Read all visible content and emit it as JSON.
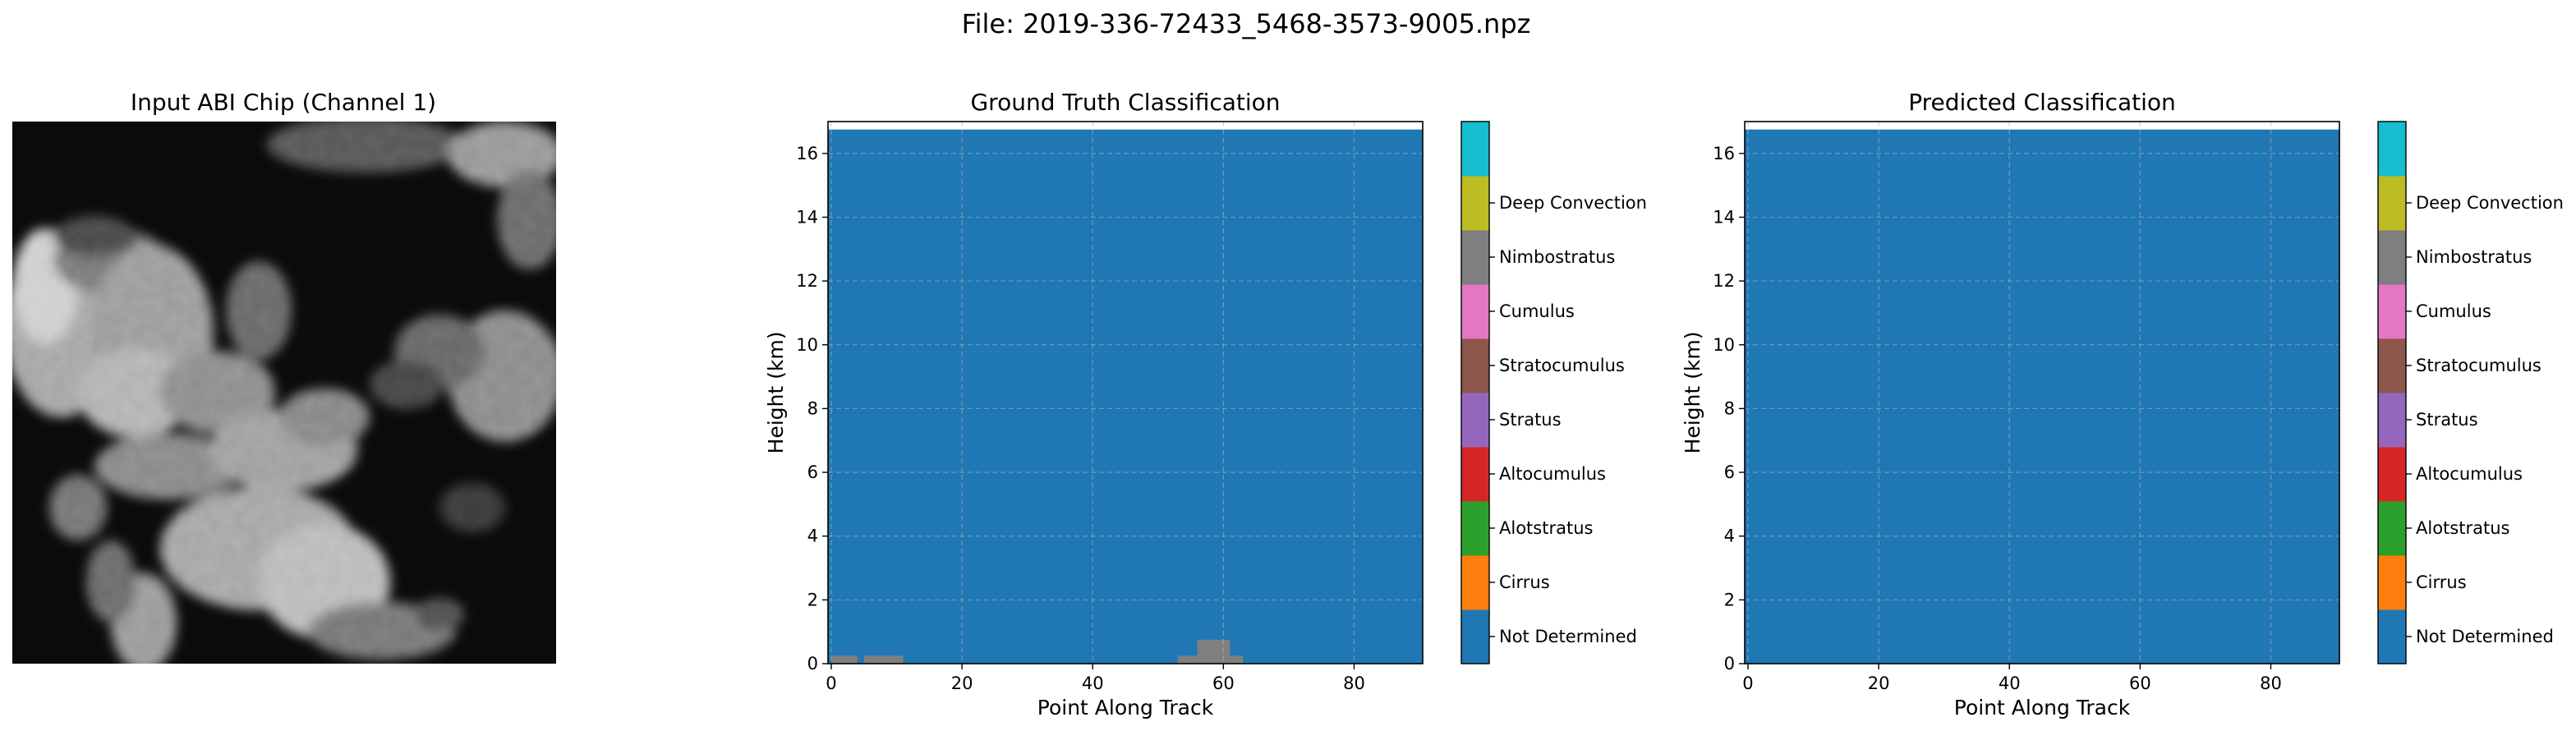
{
  "figure": {
    "suptitle": "File: 2019-336-72433_5468-3573-9005.npz",
    "image_title": "Input ABI Chip (Channel 1)"
  },
  "classes": [
    {
      "name": "Not Determined",
      "color": "#1f77b4"
    },
    {
      "name": "Cirrus",
      "color": "#ff7f0e"
    },
    {
      "name": "Alotstratus",
      "color": "#2ca02c"
    },
    {
      "name": "Altocumulus",
      "color": "#d62728"
    },
    {
      "name": "Stratus",
      "color": "#9467bd"
    },
    {
      "name": "Stratocumulus",
      "color": "#8c564b"
    },
    {
      "name": "Cumulus",
      "color": "#e377c2"
    },
    {
      "name": "Nimbostratus",
      "color": "#7f7f7f"
    },
    {
      "name": "Deep Convection",
      "color": "#bcbd22"
    },
    {
      "name": "",
      "color": "#17becf"
    }
  ],
  "chart_data": [
    {
      "type": "heatmap",
      "title": "Ground Truth Classification",
      "xlabel": "Point Along Track",
      "ylabel": "Height (km)",
      "xlim": [
        -0.5,
        90.5
      ],
      "ylim": [
        0,
        17
      ],
      "data_top": 16.75,
      "xticks": [
        0,
        20,
        40,
        60,
        80
      ],
      "yticks": [
        0,
        2,
        4,
        6,
        8,
        10,
        12,
        14,
        16
      ],
      "grid": true,
      "background_class": 0,
      "cells": [
        {
          "class": 7,
          "x0": 0,
          "x1": 4,
          "y0": 0,
          "y1": 0.25
        },
        {
          "class": 7,
          "x0": 5,
          "x1": 11,
          "y0": 0,
          "y1": 0.25
        },
        {
          "class": 7,
          "x0": 53,
          "x1": 56,
          "y0": 0,
          "y1": 0.25
        },
        {
          "class": 7,
          "x0": 56,
          "x1": 61,
          "y0": 0,
          "y1": 0.75
        },
        {
          "class": 7,
          "x0": 61,
          "x1": 63,
          "y0": 0,
          "y1": 0.25
        }
      ]
    },
    {
      "type": "heatmap",
      "title": "Predicted Classification",
      "xlabel": "Point Along Track",
      "ylabel": "Height (km)",
      "xlim": [
        -0.5,
        90.5
      ],
      "ylim": [
        0,
        17
      ],
      "data_top": 16.75,
      "xticks": [
        0,
        20,
        40,
        60,
        80
      ],
      "yticks": [
        0,
        2,
        4,
        6,
        8,
        10,
        12,
        14,
        16
      ],
      "grid": true,
      "background_class": 0,
      "cells": []
    }
  ]
}
